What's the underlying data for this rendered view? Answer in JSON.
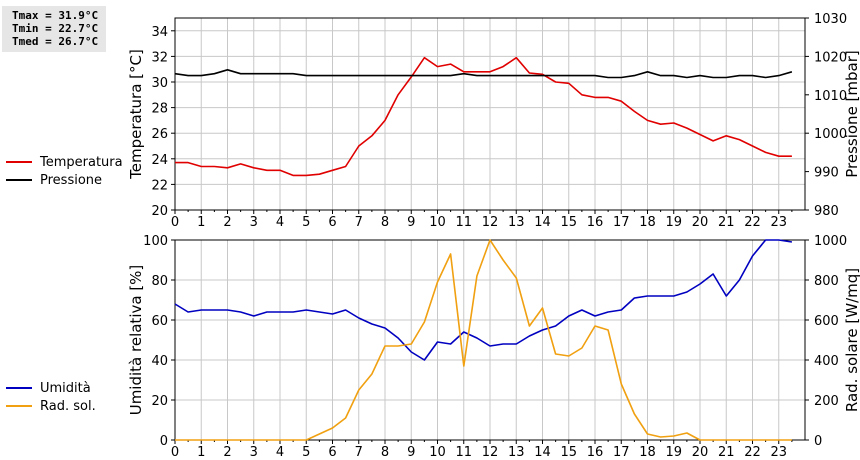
{
  "stats": {
    "tmax": "Tmax = 31.9°C",
    "tmin": "Tmin = 22.7°C",
    "tmed": "Tmed = 26.7°C"
  },
  "chart_data": [
    {
      "type": "line",
      "title": "",
      "xlabel": "",
      "ylabel": "Temperatura [°C]",
      "ylabel_right": "Pressione [mbar]",
      "xlim": [
        0,
        24
      ],
      "xticks": [
        "0",
        "1",
        "2",
        "3",
        "4",
        "5",
        "6",
        "7",
        "8",
        "9",
        "10",
        "11",
        "12",
        "13",
        "14",
        "15",
        "16",
        "17",
        "18",
        "19",
        "20",
        "21",
        "22",
        "23"
      ],
      "ylim": [
        20,
        35
      ],
      "yticks": [
        "20",
        "22",
        "24",
        "26",
        "28",
        "30",
        "32",
        "34"
      ],
      "ylim_right": [
        980,
        1030
      ],
      "yticks_right": [
        "980",
        "990",
        "1000",
        "1010",
        "1020",
        "1030"
      ],
      "grid": true,
      "legend_position": "left",
      "x": [
        0,
        0.5,
        1,
        1.5,
        2,
        2.5,
        3,
        3.5,
        4,
        4.5,
        5,
        5.5,
        6,
        6.5,
        7,
        7.5,
        8,
        8.5,
        9,
        9.5,
        10,
        10.5,
        11,
        11.5,
        12,
        12.5,
        13,
        13.5,
        14,
        14.5,
        15,
        15.5,
        16,
        16.5,
        17,
        17.5,
        18,
        18.5,
        19,
        19.5,
        20,
        20.5,
        21,
        21.5,
        22,
        22.5,
        23,
        23.5
      ],
      "series": [
        {
          "name": "Temperatura",
          "axis": "left",
          "color": "#e00000",
          "values": [
            23.7,
            23.7,
            23.4,
            23.4,
            23.3,
            23.6,
            23.3,
            23.1,
            23.1,
            22.7,
            22.7,
            22.8,
            23.1,
            23.4,
            25.0,
            25.8,
            27.0,
            29.0,
            30.4,
            31.9,
            31.2,
            31.4,
            30.8,
            30.8,
            30.8,
            31.2,
            31.9,
            30.7,
            30.6,
            30.0,
            29.9,
            29.0,
            28.8,
            28.8,
            28.5,
            27.7,
            27.0,
            26.7,
            26.8,
            26.4,
            25.9,
            25.4,
            25.8,
            25.5,
            25.0,
            24.5,
            24.2,
            24.2
          ]
        },
        {
          "name": "Pressione",
          "axis": "right",
          "color": "#000000",
          "values": [
            1015.5,
            1015,
            1015,
            1015.5,
            1016.5,
            1015.5,
            1015.5,
            1015.5,
            1015.5,
            1015.5,
            1015,
            1015,
            1015,
            1015,
            1015,
            1015,
            1015,
            1015,
            1015,
            1015,
            1015,
            1015,
            1015.5,
            1015,
            1015,
            1015,
            1015,
            1015,
            1015,
            1015,
            1015,
            1015,
            1015,
            1014.5,
            1014.5,
            1015,
            1016,
            1015,
            1015,
            1014.5,
            1015,
            1014.5,
            1014.5,
            1015,
            1015,
            1014.5,
            1015,
            1016
          ]
        }
      ]
    },
    {
      "type": "line",
      "title": "",
      "xlabel": "",
      "ylabel": "Umidità relativa [%]",
      "ylabel_right": "Rad. solare [W/mq]",
      "xlim": [
        0,
        24
      ],
      "xticks": [
        "0",
        "1",
        "2",
        "3",
        "4",
        "5",
        "6",
        "7",
        "8",
        "9",
        "10",
        "11",
        "12",
        "13",
        "14",
        "15",
        "16",
        "17",
        "18",
        "19",
        "20",
        "21",
        "22",
        "23"
      ],
      "ylim": [
        0,
        100
      ],
      "yticks": [
        "0",
        "20",
        "40",
        "60",
        "80",
        "100"
      ],
      "ylim_right": [
        0,
        1000
      ],
      "yticks_right": [
        "0",
        "200",
        "400",
        "600",
        "800",
        "1000"
      ],
      "grid": true,
      "legend_position": "left",
      "x": [
        0,
        0.5,
        1,
        1.5,
        2,
        2.5,
        3,
        3.5,
        4,
        4.5,
        5,
        5.5,
        6,
        6.5,
        7,
        7.5,
        8,
        8.5,
        9,
        9.5,
        10,
        10.5,
        11,
        11.5,
        12,
        12.5,
        13,
        13.5,
        14,
        14.5,
        15,
        15.5,
        16,
        16.5,
        17,
        17.5,
        18,
        18.5,
        19,
        19.5,
        20,
        20.5,
        21,
        21.5,
        22,
        22.5,
        23,
        23.5
      ],
      "series": [
        {
          "name": "Umidità",
          "axis": "left",
          "color": "#0000c0",
          "values": [
            68,
            64,
            65,
            65,
            65,
            64,
            62,
            64,
            64,
            64,
            65,
            64,
            63,
            65,
            61,
            58,
            56,
            51,
            44,
            40,
            49,
            48,
            54,
            51,
            47,
            48,
            48,
            52,
            55,
            57,
            62,
            65,
            62,
            64,
            65,
            71,
            72,
            72,
            72,
            74,
            78,
            83,
            72,
            80,
            92,
            100,
            100,
            99
          ]
        },
        {
          "name": "Rad. sol.",
          "axis": "right",
          "color": "#f0a010",
          "values": [
            0,
            0,
            0,
            0,
            0,
            0,
            0,
            0,
            0,
            0,
            0,
            30,
            60,
            110,
            250,
            330,
            470,
            470,
            480,
            590,
            790,
            930,
            370,
            820,
            1020,
            900,
            810,
            570,
            660,
            430,
            420,
            460,
            570,
            550,
            280,
            130,
            30,
            15,
            20,
            35,
            0,
            0,
            0,
            0,
            0,
            0,
            0,
            0
          ]
        }
      ]
    }
  ]
}
